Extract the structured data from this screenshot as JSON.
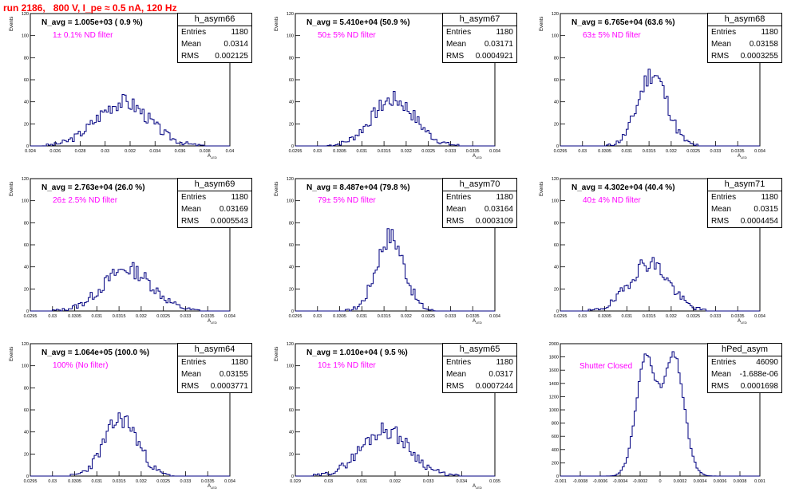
{
  "title": "run 2186,   800 V, I_pe ≈ 0.5 nA, 120 Hz",
  "colors": {
    "title": "#ff0000",
    "histogram": "#000080",
    "filter_text": "#ff00ff"
  },
  "chart_data": [
    {
      "type": "histogram",
      "name": "h_asym66",
      "nAvg": "N_avg = 1.005e+03 ( 0.9 %)",
      "filter": "1± 0.1% ND filter",
      "entries": "1180",
      "mean": "0.0314",
      "rms": "0.002125",
      "ylabel": "Events",
      "xlabel": "A_LED",
      "xlim": [
        0.024,
        0.04
      ],
      "ylim": [
        0,
        120
      ],
      "yticks": [
        0,
        20,
        40,
        60,
        80,
        100,
        120
      ],
      "xticks": [
        "0.024",
        "0.026",
        "0.028",
        "0.03",
        "0.032",
        "0.034",
        "0.036",
        "0.038",
        "0.04"
      ],
      "dist": {
        "mu": 0.0314,
        "sigma": 0.002125,
        "peak": 40,
        "seed": 3
      }
    },
    {
      "type": "histogram",
      "name": "h_asym67",
      "nAvg": "N_avg = 5.410e+04 (50.9 %)",
      "filter": "50± 5% ND filter",
      "entries": "1180",
      "mean": "0.03171",
      "rms": "0.0004921",
      "ylabel": "Events",
      "xlabel": "A_LED",
      "xlim": [
        0.0295,
        0.034
      ],
      "ylim": [
        0,
        120
      ],
      "yticks": [
        0,
        20,
        40,
        60,
        80,
        100,
        120
      ],
      "xticks": [
        "0.0295",
        "0.03",
        "0.0305",
        "0.031",
        "0.0315",
        "0.032",
        "0.0325",
        "0.033",
        "0.0335",
        "0.034"
      ],
      "dist": {
        "mu": 0.03171,
        "sigma": 0.0004921,
        "peak": 42,
        "seed": 7
      }
    },
    {
      "type": "histogram",
      "name": "h_asym68",
      "nAvg": "N_avg = 6.765e+04 (63.6 %)",
      "filter": "63± 5% ND filter",
      "entries": "1180",
      "mean": "0.03158",
      "rms": "0.0003255",
      "ylabel": "Events",
      "xlabel": "A_LED",
      "xlim": [
        0.0295,
        0.034
      ],
      "ylim": [
        0,
        120
      ],
      "yticks": [
        0,
        20,
        40,
        60,
        80,
        100,
        120
      ],
      "xticks": [
        "0.0295",
        "0.03",
        "0.0305",
        "0.031",
        "0.0315",
        "0.032",
        "0.0325",
        "0.033",
        "0.0335",
        "0.034"
      ],
      "dist": {
        "mu": 0.03158,
        "sigma": 0.0003255,
        "peak": 66,
        "seed": 11
      }
    },
    {
      "type": "histogram",
      "name": "h_asym69",
      "nAvg": "N_avg = 2.763e+04 (26.0 %)",
      "filter": "26± 2.5% ND filter",
      "entries": "1180",
      "mean": "0.03169",
      "rms": "0.0005543",
      "ylabel": "Events",
      "xlabel": "A_LED",
      "xlim": [
        0.0295,
        0.034
      ],
      "ylim": [
        0,
        120
      ],
      "yticks": [
        0,
        20,
        40,
        60,
        80,
        100,
        120
      ],
      "xticks": [
        "0.0295",
        "0.03",
        "0.0305",
        "0.031",
        "0.0315",
        "0.032",
        "0.0325",
        "0.033",
        "0.0335",
        "0.034"
      ],
      "dist": {
        "mu": 0.03169,
        "sigma": 0.0005543,
        "peak": 38,
        "seed": 13
      }
    },
    {
      "type": "histogram",
      "name": "h_asym70",
      "nAvg": "N_avg = 8.487e+04 (79.8 %)",
      "filter": "79± 5% ND filter",
      "entries": "1180",
      "mean": "0.03164",
      "rms": "0.0003109",
      "ylabel": "Events",
      "xlabel": "A_LED",
      "xlim": [
        0.0295,
        0.034
      ],
      "ylim": [
        0,
        120
      ],
      "yticks": [
        0,
        20,
        40,
        60,
        80,
        100,
        120
      ],
      "xticks": [
        "0.0295",
        "0.03",
        "0.0305",
        "0.031",
        "0.0315",
        "0.032",
        "0.0325",
        "0.033",
        "0.0335",
        "0.034"
      ],
      "dist": {
        "mu": 0.03164,
        "sigma": 0.0003109,
        "peak": 68,
        "seed": 17
      }
    },
    {
      "type": "histogram",
      "name": "h_asym71",
      "nAvg": "N_avg = 4.302e+04 (40.4 %)",
      "filter": "40± 4% ND filter",
      "entries": "1180",
      "mean": "0.0315",
      "rms": "0.0004454",
      "ylabel": "Events",
      "xlabel": "A_LED",
      "xlim": [
        0.0295,
        0.034
      ],
      "ylim": [
        0,
        120
      ],
      "yticks": [
        0,
        20,
        40,
        60,
        80,
        100,
        120
      ],
      "xticks": [
        "0.0295",
        "0.03",
        "0.0305",
        "0.031",
        "0.0315",
        "0.032",
        "0.0325",
        "0.033",
        "0.0335",
        "0.034"
      ],
      "dist": {
        "mu": 0.0315,
        "sigma": 0.0004454,
        "peak": 44,
        "seed": 19
      }
    },
    {
      "type": "histogram",
      "name": "h_asym64",
      "nAvg": "N_avg = 1.064e+05 (100.0 %)",
      "filter": "100% (No filter)",
      "entries": "1180",
      "mean": "0.03155",
      "rms": "0.0003771",
      "ylabel": "Events",
      "xlabel": "A_LED",
      "xlim": [
        0.0295,
        0.034
      ],
      "ylim": [
        0,
        120
      ],
      "yticks": [
        0,
        20,
        40,
        60,
        80,
        100,
        120
      ],
      "xticks": [
        "0.0295",
        "0.03",
        "0.0305",
        "0.031",
        "0.0315",
        "0.032",
        "0.0325",
        "0.033",
        "0.0335",
        "0.034"
      ],
      "dist": {
        "mu": 0.03155,
        "sigma": 0.0003771,
        "peak": 52,
        "seed": 23
      }
    },
    {
      "type": "histogram",
      "name": "h_asym65",
      "nAvg": "N_avg = 1.010e+04 ( 9.5 %)",
      "filter": "10± 1% ND filter",
      "entries": "1180",
      "mean": "0.0317",
      "rms": "0.0007244",
      "ylabel": "Events",
      "xlabel": "A_LED",
      "xlim": [
        0.029,
        0.035
      ],
      "ylim": [
        0,
        120
      ],
      "yticks": [
        0,
        20,
        40,
        60,
        80,
        100,
        120
      ],
      "xticks": [
        "0.029",
        "0.03",
        "0.031",
        "0.032",
        "0.033",
        "0.034",
        "0.035"
      ],
      "dist": {
        "mu": 0.0317,
        "sigma": 0.0007244,
        "peak": 42,
        "seed": 29
      }
    },
    {
      "type": "histogram",
      "name": "hPed_asym",
      "nAvg": "",
      "filter": "Shutter Closed",
      "entries": "46090",
      "mean": "-1.688e-06",
      "rms": "0.0001698",
      "ylabel": "",
      "xlabel": "",
      "xlim": [
        -0.001,
        0.001
      ],
      "ylim": [
        0,
        2000
      ],
      "yticks": [
        0,
        200,
        400,
        600,
        800,
        1000,
        1200,
        1400,
        1600,
        1800,
        2000
      ],
      "xticks": [
        "-0.001",
        "-0.0008",
        "-0.0006",
        "-0.0004",
        "-0.0002",
        "0",
        "0.0002",
        "0.0004",
        "0.0006",
        "0.0008",
        "0.001"
      ],
      "dist": {
        "bimodal": true,
        "mu1": -0.00014,
        "mu2": 0.00014,
        "sigma": 0.0001,
        "peak": 1950,
        "seed": 31
      }
    }
  ]
}
